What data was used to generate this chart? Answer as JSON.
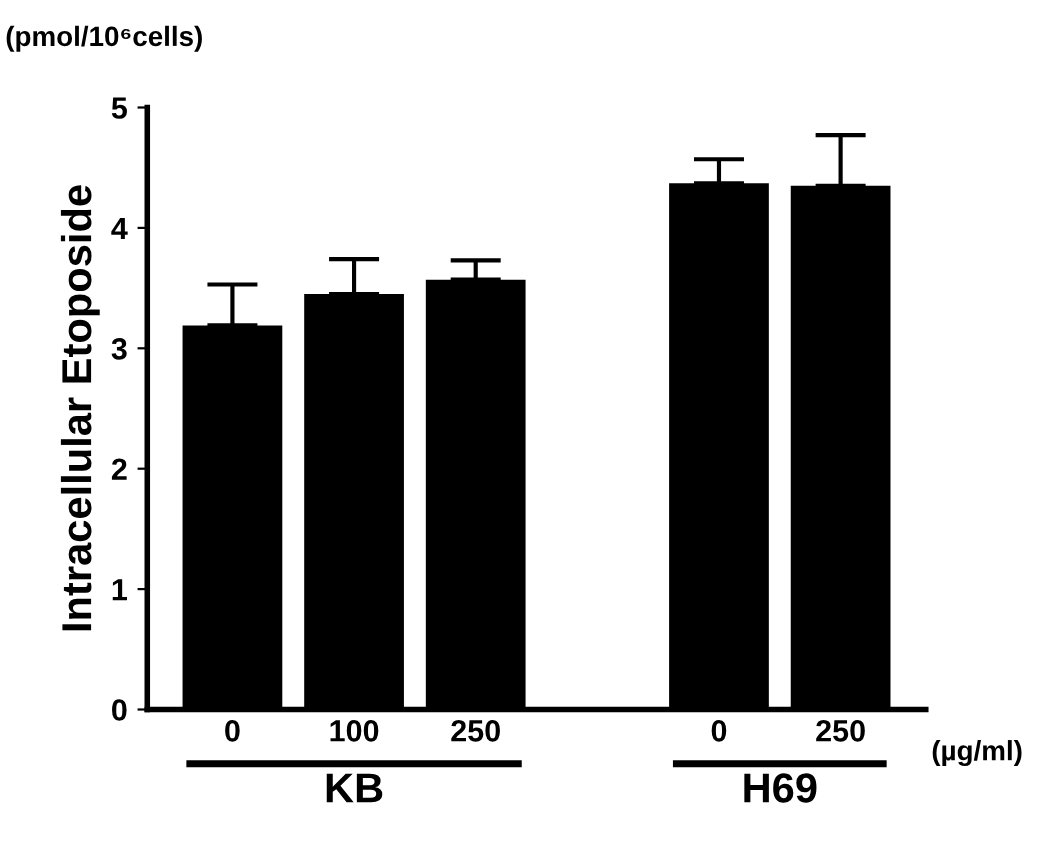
{
  "chart_data": {
    "type": "bar",
    "ylabel": "Intracellular Etoposide",
    "categories": [
      "0",
      "100",
      "250",
      null,
      "0",
      "250"
    ],
    "values": [
      3.19,
      3.45,
      3.57,
      null,
      4.37,
      4.35
    ],
    "errors": [
      [
        3.19,
        3.53
      ],
      [
        3.45,
        3.74
      ],
      [
        3.57,
        3.73
      ],
      null,
      [
        4.37,
        4.57
      ],
      [
        4.35,
        4.77
      ]
    ],
    "color": "#000000",
    "ylim": [
      0,
      5
    ],
    "yticks": [
      0,
      1,
      2,
      3,
      4,
      5
    ],
    "grid": false,
    "annotations": [
      "(pmol/10⁶cells)",
      "(µg/ml)",
      "KB",
      "H69"
    ]
  }
}
